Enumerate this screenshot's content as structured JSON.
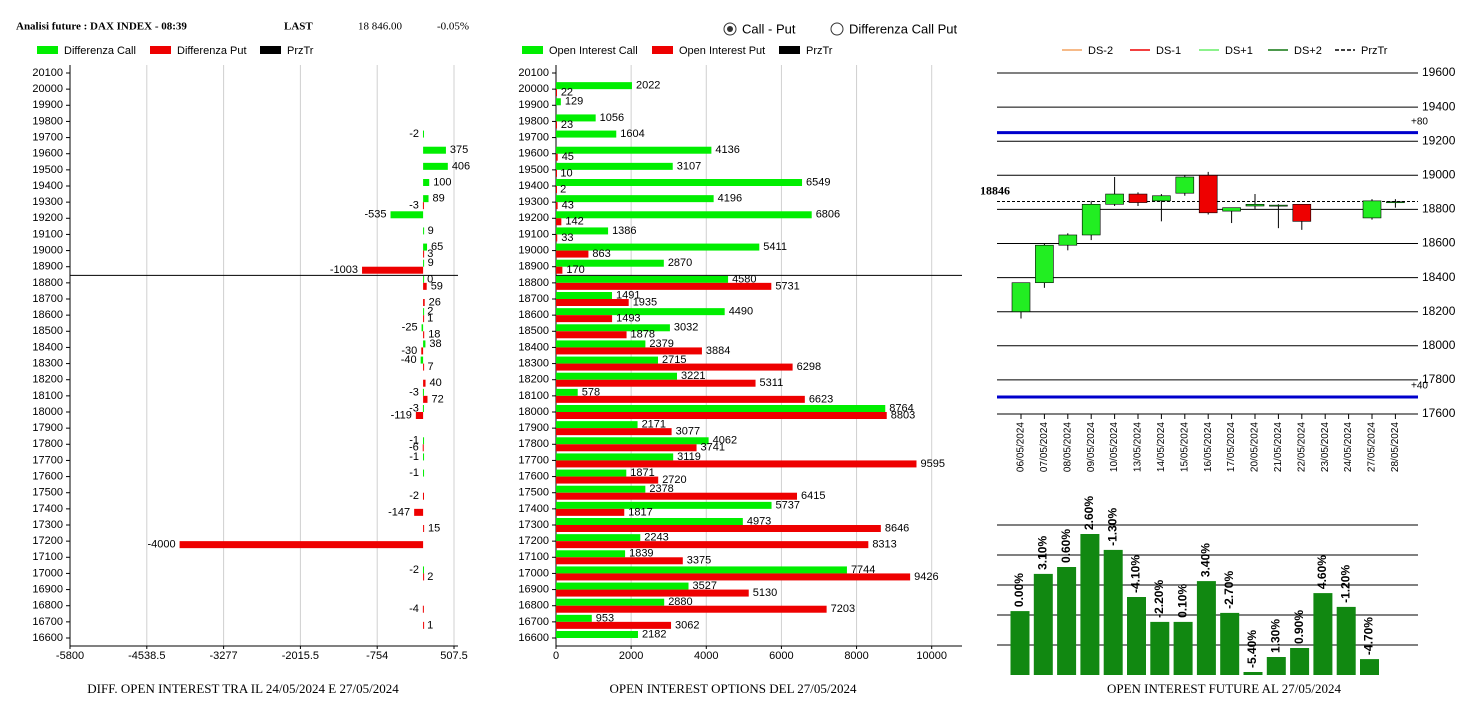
{
  "header": {
    "title": "Analisi future : DAX INDEX - 08:39",
    "last_label": "LAST",
    "last_value": "18 846.00",
    "change": "-0.05%"
  },
  "radio": [
    {
      "label": "Call - Put",
      "selected": true
    },
    {
      "label": "Differenza Call Put",
      "selected": false
    }
  ],
  "chart_data": [
    {
      "type": "hbar",
      "title": "DIFF. OPEN INTEREST TRA IL 24/05/2024 E 27/05/2024",
      "categories": [
        20100,
        20000,
        19900,
        19800,
        19700,
        19600,
        19500,
        19400,
        19300,
        19200,
        19100,
        19000,
        18900,
        18800,
        18700,
        18600,
        18500,
        18400,
        18300,
        18200,
        18100,
        18000,
        17900,
        17800,
        17700,
        17600,
        17500,
        17400,
        17300,
        17200,
        17100,
        17000,
        16900,
        16800,
        16700,
        16600
      ],
      "series": [
        {
          "name": "Differenza Call",
          "color": "#00ee00",
          "values": [
            null,
            null,
            null,
            null,
            -2,
            375,
            406,
            100,
            89,
            -535,
            9,
            65,
            9,
            0,
            null,
            2,
            -25,
            38,
            -40,
            null,
            -3,
            -3,
            null,
            -1,
            -1,
            -1,
            null,
            null,
            null,
            null,
            null,
            -2,
            null,
            null,
            null,
            null
          ]
        },
        {
          "name": "Differenza Put",
          "color": "#ee0000",
          "values": [
            null,
            null,
            null,
            null,
            null,
            null,
            null,
            null,
            -3,
            null,
            null,
            3,
            -1003,
            59,
            26,
            1,
            18,
            -30,
            7,
            40,
            72,
            -119,
            null,
            -6,
            null,
            null,
            -2,
            -147,
            15,
            -4000,
            null,
            2,
            null,
            -4,
            1,
            null
          ]
        }
      ],
      "price_line": {
        "name": "PrzTr",
        "value": 18846,
        "color": "#000000"
      },
      "xlim": [
        -5800,
        507.5
      ],
      "xticks": [
        -5800,
        -4538.5,
        -3277,
        -2015.5,
        -754,
        507.5
      ],
      "grid": true
    },
    {
      "type": "hbar",
      "title": "OPEN INTEREST OPTIONS DEL 27/05/2024",
      "categories": [
        20100,
        20000,
        19900,
        19800,
        19700,
        19600,
        19500,
        19400,
        19300,
        19200,
        19100,
        19000,
        18900,
        18800,
        18700,
        18600,
        18500,
        18400,
        18300,
        18200,
        18100,
        18000,
        17900,
        17800,
        17700,
        17600,
        17500,
        17400,
        17300,
        17200,
        17100,
        17000,
        16900,
        16800,
        16700,
        16600
      ],
      "series": [
        {
          "name": "Open Interest Call",
          "color": "#00ee00",
          "values": [
            null,
            2022,
            129,
            1056,
            1604,
            4136,
            3107,
            6549,
            4196,
            6806,
            1386,
            5411,
            2870,
            4580,
            1491,
            4490,
            3032,
            2379,
            2715,
            3221,
            578,
            8764,
            2171,
            4062,
            3119,
            1871,
            2378,
            5737,
            4973,
            2243,
            1839,
            7744,
            3527,
            2880,
            953,
            2182
          ]
        },
        {
          "name": "Open Interest Put",
          "color": "#ee0000",
          "values": [
            null,
            22,
            null,
            23,
            null,
            45,
            10,
            2,
            43,
            142,
            33,
            863,
            170,
            5731,
            1935,
            1493,
            1878,
            3884,
            6298,
            5311,
            6623,
            8803,
            3077,
            3741,
            9595,
            2720,
            6415,
            1817,
            8646,
            8313,
            3375,
            9426,
            5130,
            7203,
            3062,
            null
          ]
        }
      ],
      "price_line": {
        "name": "PrzTr",
        "value": 18846,
        "color": "#000000"
      },
      "xlim": [
        0,
        10700
      ],
      "xticks": [
        0,
        2000,
        4000,
        6000,
        8000,
        10000
      ],
      "grid": true
    },
    {
      "type": "candlestick",
      "categories": [
        "06/05/2024",
        "07/05/2024",
        "08/05/2024",
        "09/05/2024",
        "10/05/2024",
        "13/05/2024",
        "14/05/2024",
        "15/05/2024",
        "16/05/2024",
        "17/05/2024",
        "20/05/2024",
        "21/05/2024",
        "22/05/2024",
        "23/05/2024",
        "24/05/2024",
        "27/05/2024",
        "28/05/2024"
      ],
      "open": [
        18200,
        18370,
        18590,
        18650,
        18830,
        18890,
        18850,
        18895,
        19000,
        18790,
        18820,
        18820,
        18830,
        null,
        null,
        18750,
        18840
      ],
      "high": [
        18370,
        18600,
        18660,
        18850,
        18990,
        18900,
        18890,
        19000,
        19020,
        18810,
        18890,
        18830,
        18830,
        null,
        null,
        18860,
        18860
      ],
      "low": [
        18160,
        18340,
        18560,
        18620,
        18820,
        18820,
        18730,
        18880,
        18770,
        18720,
        18800,
        18690,
        18680,
        null,
        null,
        18740,
        18810
      ],
      "close": [
        18370,
        18590,
        18650,
        18830,
        18890,
        18840,
        18880,
        18990,
        18780,
        18810,
        18830,
        18825,
        18730,
        null,
        null,
        18850,
        18845
      ],
      "up_color": "#22ee22",
      "down_color": "#ee0000",
      "levels": [
        {
          "value": 19250,
          "label": "+80",
          "color": "#0000cc"
        },
        {
          "value": 17700,
          "label": "+40",
          "color": "#0000cc"
        }
      ],
      "price": 18846,
      "legend": [
        {
          "name": "DS-2",
          "color": "#f4a460",
          "dash": false
        },
        {
          "name": "DS-1",
          "color": "#ee0000",
          "dash": false
        },
        {
          "name": "DS+1",
          "color": "#66ee66",
          "dash": false
        },
        {
          "name": "DS+2",
          "color": "#117711",
          "dash": false
        },
        {
          "name": "PrzTr",
          "color": "#000000",
          "dash": true
        }
      ],
      "ylim": [
        17600,
        19600
      ],
      "yticks": [
        17600,
        17800,
        18000,
        18200,
        18400,
        18600,
        18800,
        19000,
        19200,
        19400,
        19600
      ],
      "grid": true
    },
    {
      "type": "bar",
      "title": "OPEN INTEREST FUTURE AL 27/05/2024",
      "values": [
        2.13,
        3.37,
        3.6,
        4.7,
        4.17,
        2.6,
        1.77,
        1.77,
        3.13,
        2.07,
        0.1,
        0.6,
        0.9,
        2.73,
        2.27,
        0.53
      ],
      "value_labels": [
        "0.00%",
        "3.10%",
        "0.60%",
        "2.60%",
        "-1.30%",
        "-4.10%",
        "-2.20%",
        "0.10%",
        "3.40%",
        "-2.70%",
        "-5.40%",
        "1.30%",
        "0.90%",
        "4.60%",
        "-1.20%",
        "-4.70%"
      ],
      "color": "#118811",
      "ylim": [
        0,
        5
      ],
      "yticks": [
        1,
        2,
        3,
        4,
        5
      ],
      "tick_labels": false,
      "grid": true
    }
  ]
}
